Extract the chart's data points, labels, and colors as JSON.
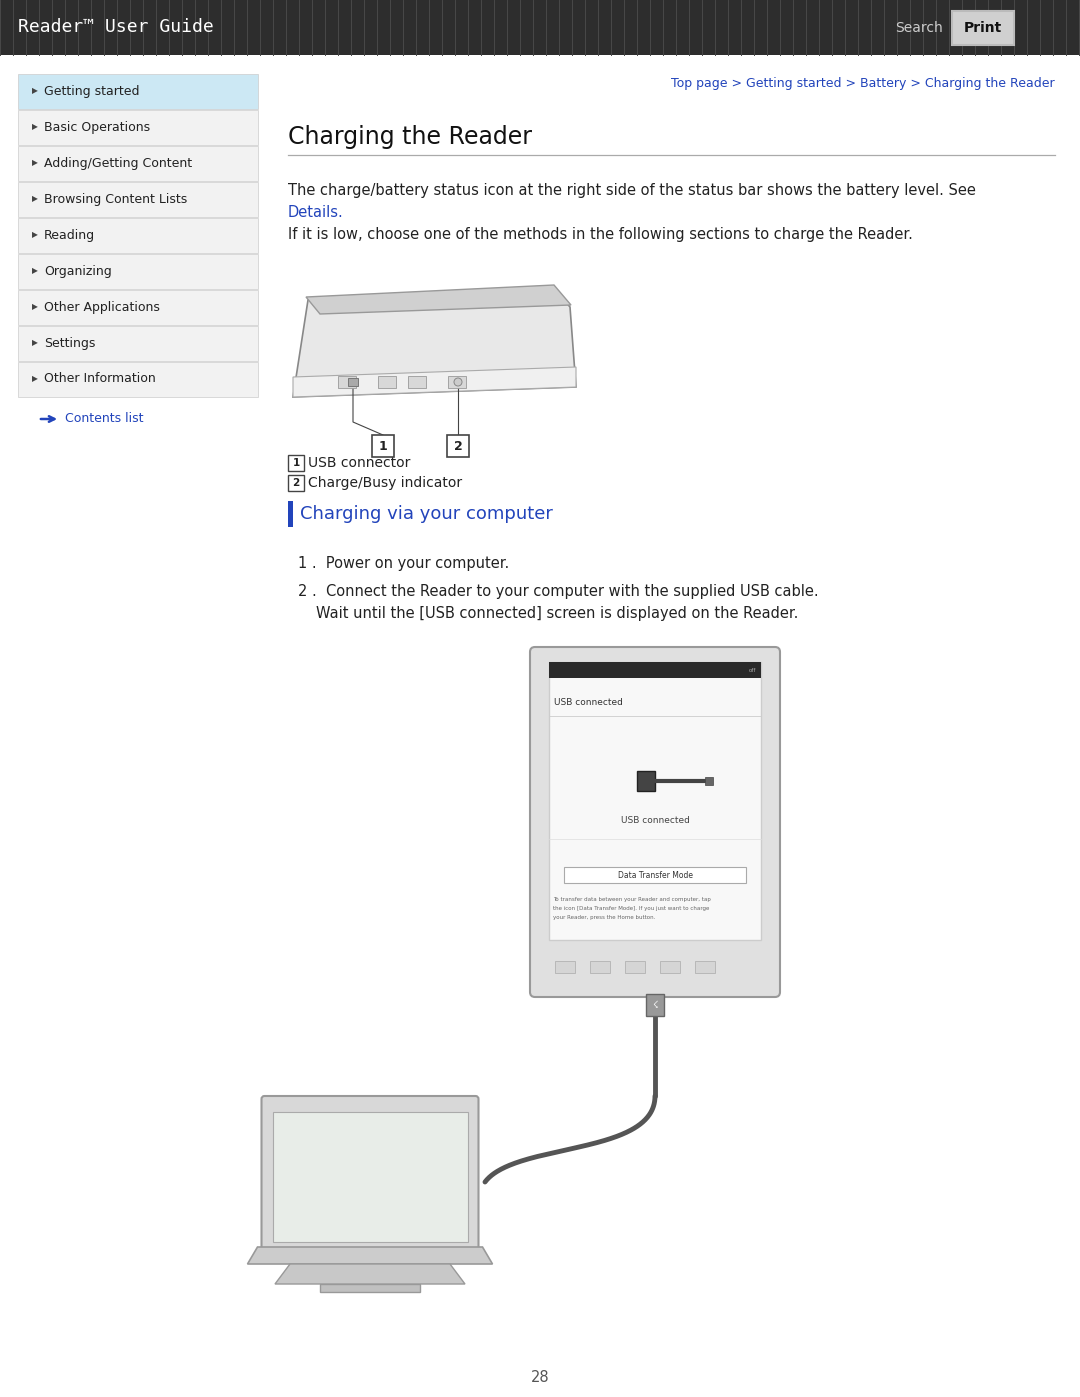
{
  "page_bg": "#ffffff",
  "header_bg": "#2d2d2d",
  "header_text": "Reader™ User Guide",
  "header_text_color": "#ffffff",
  "search_btn_text": "Search",
  "print_btn_text": "Print",
  "nav_items": [
    "Getting started",
    "Basic Operations",
    "Adding/Getting Content",
    "Browsing Content Lists",
    "Reading",
    "Organizing",
    "Other Applications",
    "Settings",
    "Other Information"
  ],
  "nav_first_bg": "#cce8f4",
  "nav_other_bg": "#f2f2f2",
  "nav_border": "#cccccc",
  "nav_text_color": "#222222",
  "contents_link_color": "#2244bb",
  "breadcrumb_text": "Top page > Getting started > Battery > Charging the Reader",
  "breadcrumb_color": "#2244bb",
  "section_title": "Charging the Reader",
  "body_text_1": "The charge/battery status icon at the right side of the status bar shows the battery level. See",
  "body_link_text": "Details.",
  "body_link_color": "#2244bb",
  "body_text_2": "If it is low, choose one of the methods in the following sections to charge the Reader.",
  "label_1_text": "USB connector",
  "label_2_text": "Charge/Busy indicator",
  "subsection_title": "Charging via your computer",
  "subsection_color": "#2244bb",
  "subsection_bar_color": "#2244bb",
  "step1": "1 .  Power on your computer.",
  "step2_line1": "2 .  Connect the Reader to your computer with the supplied USB cable.",
  "step2_line2": "     Wait until the [USB connected] screen is displayed on the Reader.",
  "page_number": "28",
  "divider_color": "#aaaaaa",
  "text_color": "#222222"
}
